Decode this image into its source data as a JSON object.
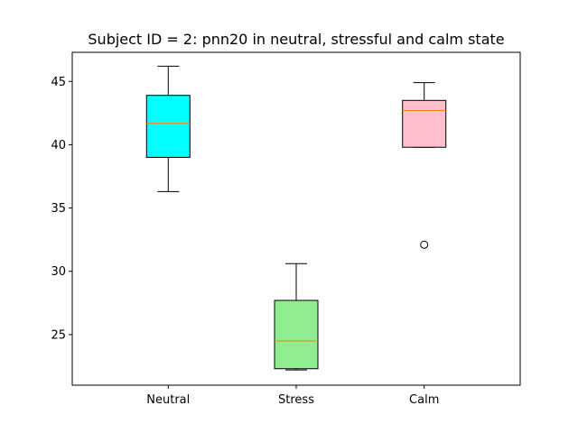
{
  "chart_data": {
    "type": "box",
    "title": "Subject ID = 2: pnn20 in neutral, stressful and calm state",
    "xlabel": "",
    "ylabel": "",
    "ylim": [
      21.0,
      47.3
    ],
    "yticks": [
      25,
      30,
      35,
      40,
      45
    ],
    "grid": false,
    "categories": [
      "Neutral",
      "Stress",
      "Calm"
    ],
    "boxes": [
      {
        "category": "Neutral",
        "color": "#00ffff",
        "whisker_low": 36.3,
        "q1": 39.0,
        "median": 41.7,
        "q3": 43.9,
        "whisker_high": 46.2,
        "outliers": []
      },
      {
        "category": "Stress",
        "color": "#90ee90",
        "whisker_low": 22.2,
        "q1": 22.3,
        "median": 24.5,
        "q3": 27.7,
        "whisker_high": 30.6,
        "outliers": []
      },
      {
        "category": "Calm",
        "color": "#ffc0cb",
        "whisker_low": 39.8,
        "q1": 39.8,
        "median": 42.7,
        "q3": 43.5,
        "whisker_high": 44.9,
        "outliers": [
          32.1
        ]
      }
    ],
    "median_color": "#ff7f0e"
  }
}
